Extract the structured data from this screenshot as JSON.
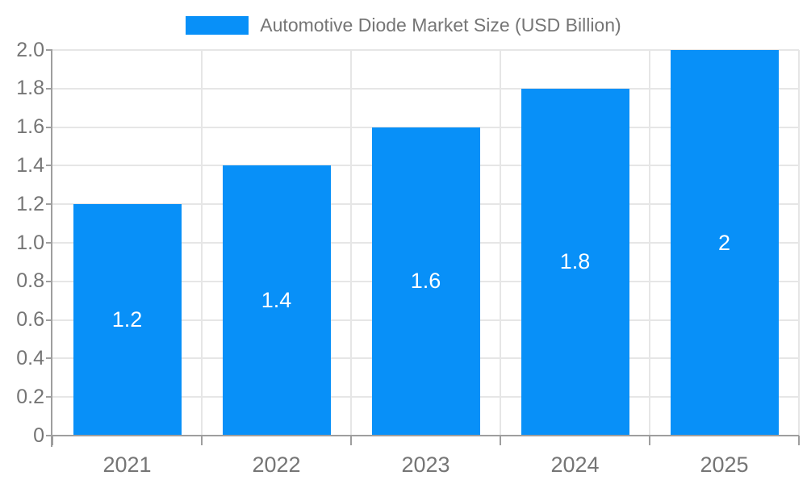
{
  "chart_data": {
    "type": "bar",
    "title": "Automotive Diode Market Size (USD Billion)",
    "categories": [
      "2021",
      "2022",
      "2023",
      "2024",
      "2025"
    ],
    "values": [
      1.2,
      1.4,
      1.6,
      1.8,
      2
    ],
    "value_labels": [
      "1.2",
      "1.4",
      "1.6",
      "1.8",
      "2"
    ],
    "y_tick_values": [
      0,
      0.2,
      0.4,
      0.6,
      0.8,
      1.0,
      1.2,
      1.4,
      1.6,
      1.8,
      2.0
    ],
    "y_tick_labels": [
      "0",
      "0.2",
      "0.4",
      "0.6",
      "0.8",
      "1.0",
      "1.2",
      "1.4",
      "1.6",
      "1.8",
      "2.0"
    ],
    "ylim": [
      0,
      2
    ],
    "xlabel": "",
    "ylabel": "",
    "grid": true,
    "legend_position": "top",
    "colors": {
      "bar": "#0890f8",
      "value_text": "#ffffff",
      "axis_text": "#757575",
      "title_text": "#757575",
      "gridline": "#e6e6e6",
      "axis_line": "#9e9e9e",
      "background": "#ffffff"
    }
  }
}
